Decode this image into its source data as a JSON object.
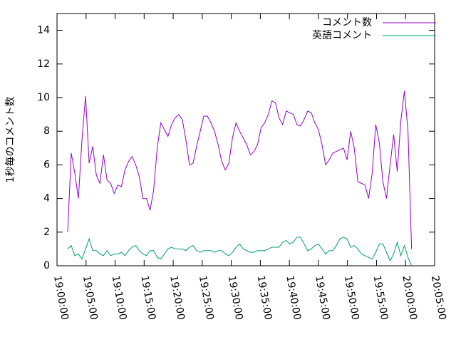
{
  "chart_data": {
    "type": "line",
    "ylabel": "1秒毎のコメント数",
    "x": [
      "19:01:50",
      "19:02:27",
      "19:03:04",
      "19:03:41",
      "19:04:18",
      "19:04:55",
      "19:05:32",
      "19:06:09",
      "19:06:46",
      "19:07:23",
      "19:08:00",
      "19:08:37",
      "19:09:14",
      "19:09:51",
      "19:10:28",
      "19:11:05",
      "19:11:42",
      "19:12:19",
      "19:12:56",
      "19:13:33",
      "19:14:10",
      "19:14:47",
      "19:15:24",
      "19:16:01",
      "19:16:38",
      "19:17:15",
      "19:17:52",
      "19:18:29",
      "19:19:06",
      "19:19:43",
      "19:20:20",
      "19:20:57",
      "19:21:34",
      "19:22:11",
      "19:22:48",
      "19:23:25",
      "19:24:02",
      "19:24:39",
      "19:25:16",
      "19:25:53",
      "19:26:30",
      "19:27:07",
      "19:27:44",
      "19:28:21",
      "19:28:58",
      "19:29:35",
      "19:30:12",
      "19:30:49",
      "19:31:26",
      "19:32:03",
      "19:32:40",
      "19:33:17",
      "19:33:54",
      "19:34:31",
      "19:35:08",
      "19:35:45",
      "19:36:22",
      "19:36:59",
      "19:37:36",
      "19:38:13",
      "19:38:50",
      "19:39:27",
      "19:40:04",
      "19:40:41",
      "19:41:18",
      "19:41:55",
      "19:42:32",
      "19:43:09",
      "19:43:46",
      "19:44:23",
      "19:45:00",
      "19:45:37",
      "19:46:14",
      "19:46:51",
      "19:47:28",
      "19:48:05",
      "19:48:42",
      "19:49:19",
      "19:49:56",
      "19:50:33",
      "19:51:10",
      "19:51:47",
      "19:52:24",
      "19:53:01",
      "19:53:38",
      "19:54:15",
      "19:54:52",
      "19:55:29",
      "19:56:06",
      "19:56:43",
      "19:57:20",
      "19:57:57",
      "19:58:34",
      "19:59:11",
      "19:59:48",
      "20:00:25",
      "20:01:02"
    ],
    "series": [
      {
        "name": "コメント数",
        "color": "#9400d3",
        "values": [
          2.0,
          6.7,
          5.5,
          4.0,
          7.5,
          10.1,
          6.1,
          7.1,
          5.4,
          4.9,
          6.6,
          5.1,
          4.9,
          4.3,
          4.8,
          4.7,
          5.7,
          6.2,
          6.5,
          6.0,
          5.3,
          4.0,
          4.0,
          3.3,
          4.5,
          7.0,
          8.5,
          8.1,
          7.7,
          8.4,
          8.8,
          9.0,
          8.7,
          7.5,
          6.0,
          6.1,
          7.1,
          8.0,
          8.9,
          8.9,
          8.5,
          8.0,
          7.2,
          6.2,
          5.7,
          6.1,
          7.6,
          8.5,
          8.0,
          7.6,
          7.2,
          6.6,
          6.8,
          7.2,
          8.2,
          8.5,
          9.0,
          9.8,
          9.7,
          8.8,
          8.4,
          9.2,
          9.1,
          9.0,
          8.4,
          8.3,
          8.7,
          9.2,
          9.1,
          8.5,
          8.1,
          7.2,
          6.0,
          6.3,
          6.7,
          6.8,
          6.9,
          7.0,
          6.3,
          8.0,
          7.0,
          5.0,
          4.9,
          4.8,
          4.0,
          5.5,
          8.4,
          7.3,
          5.0,
          4.0,
          6.0,
          7.8,
          5.6,
          8.6,
          10.4,
          8.0,
          1.0
        ]
      },
      {
        "name": "英語コメント",
        "color": "#009e73",
        "values": [
          1.0,
          1.2,
          0.6,
          0.7,
          0.4,
          1.0,
          1.6,
          0.9,
          0.9,
          0.7,
          0.6,
          0.9,
          0.6,
          0.7,
          0.7,
          0.8,
          0.6,
          0.9,
          1.1,
          1.2,
          0.9,
          0.7,
          0.6,
          0.9,
          0.9,
          0.5,
          0.4,
          0.7,
          1.0,
          1.1,
          1.0,
          1.0,
          1.0,
          0.9,
          1.1,
          1.2,
          0.9,
          0.8,
          0.9,
          0.9,
          0.9,
          0.8,
          0.9,
          0.9,
          0.7,
          0.6,
          0.8,
          1.1,
          1.3,
          1.0,
          0.9,
          0.8,
          0.8,
          0.9,
          0.9,
          0.9,
          1.0,
          1.1,
          1.1,
          1.1,
          1.4,
          1.5,
          1.3,
          1.4,
          1.7,
          1.7,
          1.3,
          0.9,
          1.0,
          1.2,
          1.3,
          1.0,
          0.7,
          0.9,
          0.9,
          1.2,
          1.6,
          1.7,
          1.6,
          1.1,
          1.2,
          1.0,
          0.7,
          0.6,
          0.5,
          0.4,
          0.8,
          1.3,
          1.3,
          0.8,
          0.3,
          0.7,
          1.4,
          0.6,
          1.2,
          0.5,
          0.0
        ]
      }
    ],
    "xlim": [
      "19:00:00",
      "20:05:00"
    ],
    "xticks": [
      "19:00:00",
      "19:05:00",
      "19:10:00",
      "19:15:00",
      "19:20:00",
      "19:25:00",
      "19:30:00",
      "19:35:00",
      "19:40:00",
      "19:45:00",
      "19:50:00",
      "19:55:00",
      "20:00:00",
      "20:05:00"
    ],
    "ylim": [
      0,
      15
    ],
    "yticks": [
      0,
      2,
      4,
      6,
      8,
      10,
      12,
      14
    ],
    "legend": "top-right"
  }
}
